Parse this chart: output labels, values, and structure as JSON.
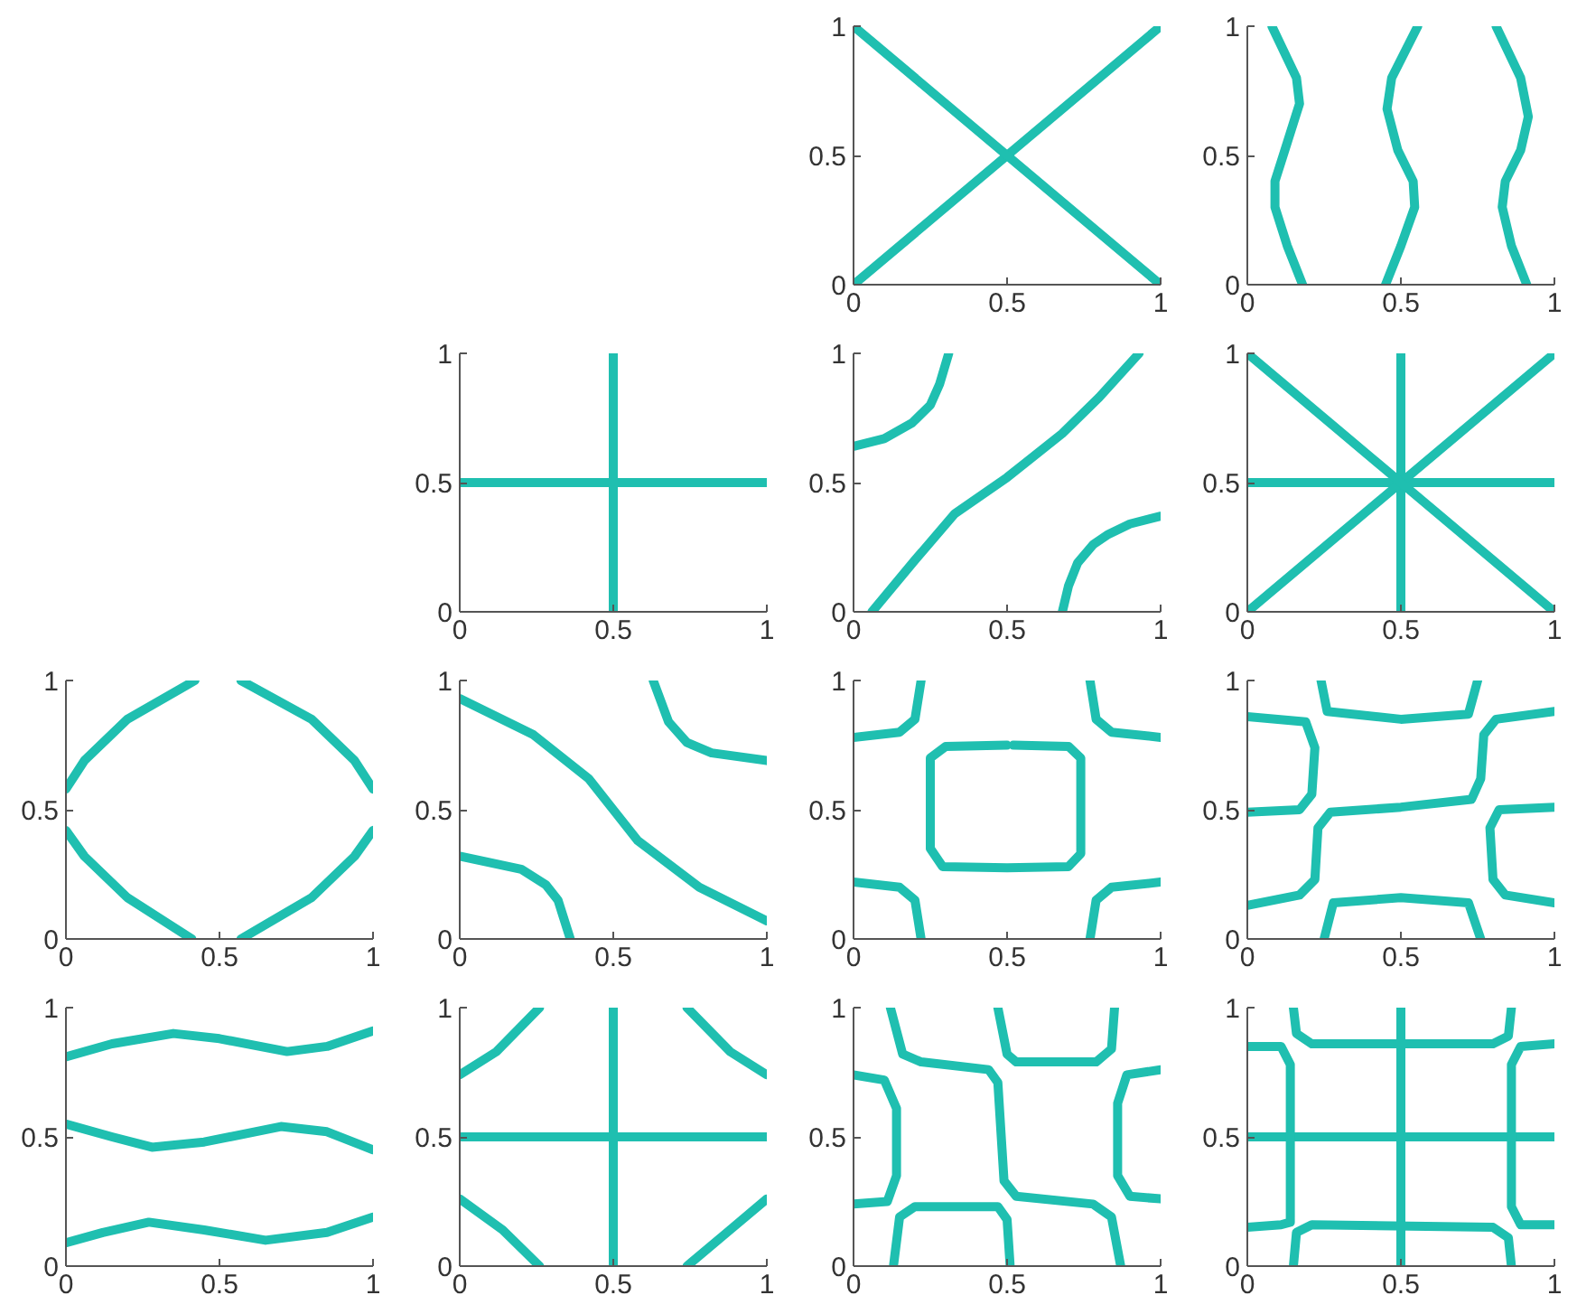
{
  "chart_data": [
    {
      "type": "line",
      "xlim": [
        0,
        1
      ],
      "ylim": [
        0,
        1
      ],
      "xticks": [
        0,
        0.5,
        1
      ],
      "yticks": [
        0,
        0.5,
        1
      ],
      "series": [
        {
          "color": "#1fbfb0",
          "x": [
            0,
            1
          ],
          "values": [
            0,
            1
          ]
        },
        {
          "color": "#1fbfb0",
          "x": [
            0,
            1
          ],
          "values": [
            1,
            0
          ]
        }
      ]
    },
    {
      "type": "line",
      "xlim": [
        0,
        1
      ],
      "ylim": [
        0,
        1
      ],
      "xticks": [
        0,
        0.5,
        1
      ],
      "yticks": [
        0,
        0.5,
        1
      ],
      "series": [
        {
          "color": "#1fbfb0",
          "x": [
            0.18,
            0.13,
            0.09,
            0.09,
            0.13,
            0.17,
            0.16,
            0.08
          ],
          "values": [
            0,
            0.15,
            0.3,
            0.4,
            0.55,
            0.7,
            0.8,
            1
          ]
        },
        {
          "color": "#1fbfb0",
          "x": [
            0.45,
            0.5,
            0.545,
            0.54,
            0.49,
            0.455,
            0.47,
            0.555
          ],
          "values": [
            0,
            0.15,
            0.3,
            0.4,
            0.52,
            0.68,
            0.8,
            1
          ]
        },
        {
          "color": "#1fbfb0",
          "x": [
            0.91,
            0.86,
            0.83,
            0.84,
            0.89,
            0.915,
            0.89,
            0.81
          ],
          "values": [
            0,
            0.15,
            0.3,
            0.4,
            0.52,
            0.65,
            0.8,
            1
          ]
        }
      ]
    },
    {
      "type": "line",
      "xlim": [
        0,
        1
      ],
      "ylim": [
        0,
        1
      ],
      "xticks": [
        0,
        0.5,
        1
      ],
      "yticks": [
        0,
        0.5,
        1
      ],
      "series": [
        {
          "color": "#1fbfb0",
          "x": [
            0,
            1
          ],
          "values": [
            0.5,
            0.5
          ]
        },
        {
          "color": "#1fbfb0",
          "x": [
            0.5,
            0.5
          ],
          "values": [
            0,
            1
          ]
        }
      ]
    },
    {
      "type": "line",
      "xlim": [
        0,
        1
      ],
      "ylim": [
        0,
        1
      ],
      "xticks": [
        0,
        0.5,
        1
      ],
      "yticks": [
        0,
        0.5,
        1
      ],
      "series": [
        {
          "color": "#1fbfb0",
          "x": [
            0,
            0.1,
            0.19,
            0.25,
            0.28,
            0.31
          ],
          "values": [
            0.64,
            0.67,
            0.73,
            0.8,
            0.88,
            1
          ]
        },
        {
          "color": "#1fbfb0",
          "x": [
            0.06,
            0.2,
            0.33,
            0.5,
            0.68,
            0.8,
            0.93
          ],
          "values": [
            0,
            0.2,
            0.38,
            0.52,
            0.69,
            0.83,
            1
          ]
        },
        {
          "color": "#1fbfb0",
          "x": [
            0.68,
            0.7,
            0.73,
            0.78,
            0.83,
            0.9,
            1
          ],
          "values": [
            0,
            0.1,
            0.19,
            0.26,
            0.3,
            0.34,
            0.37
          ]
        }
      ]
    },
    {
      "type": "line",
      "xlim": [
        0,
        1
      ],
      "ylim": [
        0,
        1
      ],
      "xticks": [
        0,
        0.5,
        1
      ],
      "yticks": [
        0,
        0.5,
        1
      ],
      "series": [
        {
          "color": "#1fbfb0",
          "x": [
            0,
            1
          ],
          "values": [
            0.5,
            0.5
          ]
        },
        {
          "color": "#1fbfb0",
          "x": [
            0.5,
            0.5
          ],
          "values": [
            0,
            1
          ]
        },
        {
          "color": "#1fbfb0",
          "x": [
            0,
            1
          ],
          "values": [
            0,
            1
          ]
        },
        {
          "color": "#1fbfb0",
          "x": [
            0,
            1
          ],
          "values": [
            1,
            0
          ]
        }
      ]
    },
    {
      "type": "line",
      "xlim": [
        0,
        1
      ],
      "ylim": [
        0,
        1
      ],
      "xticks": [
        0,
        0.5,
        1
      ],
      "yticks": [
        0,
        0.5,
        1
      ],
      "series": [
        {
          "color": "#1fbfb0",
          "x": [
            0,
            0.06,
            0.2,
            0.42
          ],
          "values": [
            0.58,
            0.69,
            0.85,
            1
          ]
        },
        {
          "color": "#1fbfb0",
          "x": [
            0.57,
            0.8,
            0.94,
            1
          ],
          "values": [
            1,
            0.85,
            0.69,
            0.58
          ]
        },
        {
          "color": "#1fbfb0",
          "x": [
            0,
            0.06,
            0.2,
            0.41
          ],
          "values": [
            0.42,
            0.32,
            0.16,
            0
          ]
        },
        {
          "color": "#1fbfb0",
          "x": [
            0.57,
            0.8,
            0.94,
            1
          ],
          "values": [
            0,
            0.16,
            0.32,
            0.42
          ]
        }
      ]
    },
    {
      "type": "line",
      "xlim": [
        0,
        1
      ],
      "ylim": [
        0,
        1
      ],
      "xticks": [
        0,
        0.5,
        1
      ],
      "yticks": [
        0,
        0.5,
        1
      ],
      "series": [
        {
          "color": "#1fbfb0",
          "x": [
            0,
            0.24,
            0.42,
            0.5,
            0.58,
            0.78,
            1
          ],
          "values": [
            0.93,
            0.79,
            0.62,
            0.5,
            0.38,
            0.2,
            0.07
          ]
        },
        {
          "color": "#1fbfb0",
          "x": [
            0,
            0.2,
            0.28,
            0.32,
            0.36
          ],
          "values": [
            0.32,
            0.27,
            0.21,
            0.15,
            0
          ]
        },
        {
          "color": "#1fbfb0",
          "x": [
            0.63,
            0.68,
            0.74,
            0.82,
            1
          ],
          "values": [
            1,
            0.84,
            0.76,
            0.72,
            0.69
          ]
        }
      ]
    },
    {
      "type": "line",
      "xlim": [
        0,
        1
      ],
      "ylim": [
        0,
        1
      ],
      "xticks": [
        0,
        0.5,
        1
      ],
      "yticks": [
        0,
        0.5,
        1
      ],
      "series": [
        {
          "color": "#1fbfb0",
          "x": [
            0.5,
            0.3,
            0.25,
            0.25,
            0.29,
            0.5,
            0.7,
            0.74,
            0.74,
            0.7,
            0.52
          ],
          "values": [
            0.75,
            0.745,
            0.7,
            0.35,
            0.28,
            0.275,
            0.28,
            0.33,
            0.7,
            0.745,
            0.75
          ]
        },
        {
          "color": "#1fbfb0",
          "x": [
            0,
            0.15,
            0.2,
            0.22
          ],
          "values": [
            0.78,
            0.8,
            0.85,
            1
          ]
        },
        {
          "color": "#1fbfb0",
          "x": [
            0.77,
            0.79,
            0.84,
            1
          ],
          "values": [
            1,
            0.85,
            0.8,
            0.78
          ]
        },
        {
          "color": "#1fbfb0",
          "x": [
            0,
            0.15,
            0.2,
            0.22
          ],
          "values": [
            0.22,
            0.2,
            0.15,
            0
          ]
        },
        {
          "color": "#1fbfb0",
          "x": [
            0.77,
            0.79,
            0.84,
            1
          ],
          "values": [
            0,
            0.15,
            0.2,
            0.22
          ]
        }
      ]
    },
    {
      "type": "line",
      "xlim": [
        0,
        1
      ],
      "ylim": [
        0,
        1
      ],
      "xticks": [
        0,
        0.5,
        1
      ],
      "yticks": [
        0,
        0.5,
        1
      ],
      "series": [
        {
          "color": "#1fbfb0",
          "x": [
            0.24,
            0.26,
            0.5,
            0.72,
            0.75
          ],
          "values": [
            1,
            0.88,
            0.85,
            0.87,
            1
          ]
        },
        {
          "color": "#1fbfb0",
          "x": [
            0,
            0.19,
            0.22,
            0.21,
            0.17,
            0
          ],
          "values": [
            0.86,
            0.84,
            0.74,
            0.56,
            0.5,
            0.49
          ]
        },
        {
          "color": "#1fbfb0",
          "x": [
            0,
            0.17,
            0.22,
            0.23,
            0.27,
            0.5,
            0.73,
            0.76,
            0.77,
            0.81,
            1
          ],
          "values": [
            0.13,
            0.17,
            0.23,
            0.43,
            0.49,
            0.51,
            0.54,
            0.62,
            0.79,
            0.85,
            0.88
          ]
        },
        {
          "color": "#1fbfb0",
          "x": [
            1,
            0.82,
            0.79,
            0.8,
            0.84,
            1
          ],
          "values": [
            0.51,
            0.5,
            0.43,
            0.23,
            0.17,
            0.14
          ]
        },
        {
          "color": "#1fbfb0",
          "x": [
            0.25,
            0.28,
            0.5,
            0.72,
            0.76
          ],
          "values": [
            0,
            0.14,
            0.16,
            0.14,
            0
          ]
        }
      ]
    },
    {
      "type": "line",
      "xlim": [
        0,
        1
      ],
      "ylim": [
        0,
        1
      ],
      "xticks": [
        0,
        0.5,
        1
      ],
      "yticks": [
        0,
        0.5,
        1
      ],
      "series": [
        {
          "color": "#1fbfb0",
          "x": [
            0,
            0.15,
            0.35,
            0.5,
            0.72,
            0.85,
            1
          ],
          "values": [
            0.81,
            0.86,
            0.9,
            0.88,
            0.83,
            0.85,
            0.91
          ]
        },
        {
          "color": "#1fbfb0",
          "x": [
            0,
            0.15,
            0.28,
            0.45,
            0.7,
            0.85,
            1
          ],
          "values": [
            0.55,
            0.5,
            0.46,
            0.48,
            0.54,
            0.52,
            0.45
          ]
        },
        {
          "color": "#1fbfb0",
          "x": [
            0,
            0.12,
            0.27,
            0.45,
            0.65,
            0.85,
            1
          ],
          "values": [
            0.09,
            0.13,
            0.17,
            0.14,
            0.1,
            0.13,
            0.19
          ]
        }
      ]
    },
    {
      "type": "line",
      "xlim": [
        0,
        1
      ],
      "ylim": [
        0,
        1
      ],
      "xticks": [
        0,
        0.5,
        1
      ],
      "yticks": [
        0,
        0.5,
        1
      ],
      "series": [
        {
          "color": "#1fbfb0",
          "x": [
            0,
            1
          ],
          "values": [
            0.5,
            0.5
          ]
        },
        {
          "color": "#1fbfb0",
          "x": [
            0.5,
            0.5
          ],
          "values": [
            0,
            1
          ]
        },
        {
          "color": "#1fbfb0",
          "x": [
            0,
            0.12,
            0.26
          ],
          "values": [
            0.74,
            0.83,
            1
          ]
        },
        {
          "color": "#1fbfb0",
          "x": [
            0.74,
            0.88,
            1
          ],
          "values": [
            1,
            0.83,
            0.74
          ]
        },
        {
          "color": "#1fbfb0",
          "x": [
            0,
            0.14,
            0.26
          ],
          "values": [
            0.26,
            0.14,
            0
          ]
        },
        {
          "color": "#1fbfb0",
          "x": [
            0.74,
            0.88,
            1
          ],
          "values": [
            0,
            0.14,
            0.26
          ]
        }
      ]
    },
    {
      "type": "line",
      "xlim": [
        0,
        1
      ],
      "ylim": [
        0,
        1
      ],
      "xticks": [
        0,
        0.5,
        1
      ],
      "yticks": [
        0,
        0.5,
        1
      ],
      "series": [
        {
          "color": "#1fbfb0",
          "x": [
            0.12,
            0.16,
            0.22,
            0.44,
            0.47,
            0.49,
            0.53,
            0.78,
            0.84,
            0.87
          ],
          "values": [
            1,
            0.82,
            0.79,
            0.76,
            0.71,
            0.33,
            0.27,
            0.24,
            0.19,
            0
          ]
        },
        {
          "color": "#1fbfb0",
          "x": [
            0.47,
            0.5,
            0.53,
            0.79,
            0.84,
            0.85
          ],
          "values": [
            1,
            0.82,
            0.79,
            0.79,
            0.84,
            1
          ]
        },
        {
          "color": "#1fbfb0",
          "x": [
            0,
            0.1,
            0.14,
            0.14,
            0.11,
            0
          ],
          "values": [
            0.74,
            0.72,
            0.61,
            0.35,
            0.25,
            0.24
          ]
        },
        {
          "color": "#1fbfb0",
          "x": [
            1,
            0.89,
            0.86,
            0.86,
            0.9,
            1
          ],
          "values": [
            0.76,
            0.74,
            0.63,
            0.35,
            0.27,
            0.26
          ]
        },
        {
          "color": "#1fbfb0",
          "x": [
            0.13,
            0.15,
            0.2,
            0.47,
            0.5,
            0.51
          ],
          "values": [
            0,
            0.19,
            0.23,
            0.23,
            0.18,
            0
          ]
        }
      ]
    },
    {
      "type": "line",
      "xlim": [
        0,
        1
      ],
      "ylim": [
        0,
        1
      ],
      "xticks": [
        0,
        0.5,
        1
      ],
      "yticks": [
        0,
        0.5,
        1
      ],
      "series": [
        {
          "color": "#1fbfb0",
          "x": [
            0,
            1
          ],
          "values": [
            0.5,
            0.5
          ]
        },
        {
          "color": "#1fbfb0",
          "x": [
            0.5,
            0.5
          ],
          "values": [
            0,
            1
          ]
        },
        {
          "color": "#1fbfb0",
          "x": [
            0.15,
            0.16,
            0.21,
            0.8,
            0.85,
            0.86
          ],
          "values": [
            1,
            0.9,
            0.86,
            0.86,
            0.89,
            1
          ]
        },
        {
          "color": "#1fbfb0",
          "x": [
            0.15,
            0.16,
            0.21,
            0.8,
            0.85,
            0.86
          ],
          "values": [
            0,
            0.13,
            0.16,
            0.15,
            0.11,
            0
          ]
        },
        {
          "color": "#1fbfb0",
          "x": [
            0,
            0.11,
            0.14,
            0.14,
            0.11,
            0
          ],
          "values": [
            0.85,
            0.85,
            0.78,
            0.17,
            0.16,
            0.15
          ]
        },
        {
          "color": "#1fbfb0",
          "x": [
            1,
            0.89,
            0.86,
            0.86,
            0.89,
            1
          ],
          "values": [
            0.86,
            0.85,
            0.78,
            0.23,
            0.16,
            0.16
          ]
        }
      ]
    }
  ]
}
